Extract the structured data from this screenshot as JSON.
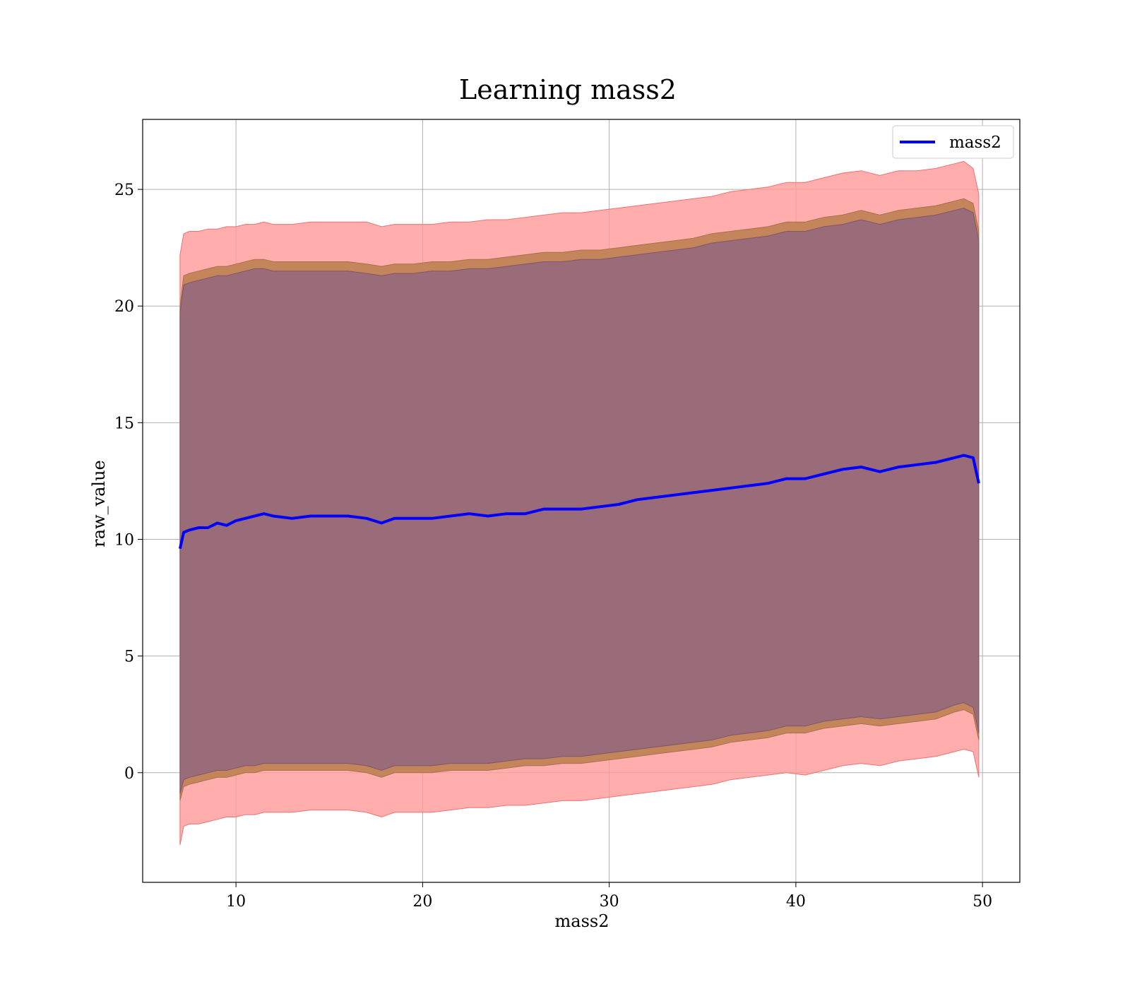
{
  "chart_data": {
    "type": "area",
    "title": "Learning mass2",
    "xlabel": "mass2",
    "ylabel": "raw_value",
    "xlim": [
      5,
      52
    ],
    "ylim": [
      -4.7,
      28
    ],
    "xticks": [
      10,
      20,
      30,
      40,
      50
    ],
    "yticks": [
      0,
      5,
      10,
      15,
      20,
      25
    ],
    "grid": true,
    "legend_position": "top-right",
    "line_color": "#0000ff",
    "band_colors": {
      "outer": "#ff9999",
      "middle": "#c4855a",
      "inner": "#9a6b78"
    },
    "series": [
      {
        "name": "mass2",
        "x": [
          7.0,
          7.2,
          7.5,
          8.0,
          8.5,
          9.0,
          9.5,
          10.0,
          10.5,
          11.0,
          11.5,
          12.0,
          13.0,
          14.0,
          15.0,
          16.0,
          17.0,
          17.8,
          18.5,
          19.5,
          20.5,
          21.5,
          22.5,
          23.5,
          24.5,
          25.5,
          26.5,
          27.5,
          28.5,
          29.5,
          30.5,
          31.5,
          32.5,
          33.5,
          34.5,
          35.5,
          36.5,
          37.5,
          38.5,
          39.5,
          40.5,
          41.5,
          42.5,
          43.5,
          44.5,
          45.5,
          46.5,
          47.5,
          48.5,
          49.0,
          49.5,
          49.8
        ],
        "y": [
          9.6,
          10.3,
          10.4,
          10.5,
          10.5,
          10.7,
          10.6,
          10.8,
          10.9,
          11.0,
          11.1,
          11.0,
          10.9,
          11.0,
          11.0,
          11.0,
          10.9,
          10.7,
          10.9,
          10.9,
          10.9,
          11.0,
          11.1,
          11.0,
          11.1,
          11.1,
          11.3,
          11.3,
          11.3,
          11.4,
          11.5,
          11.7,
          11.8,
          11.9,
          12.0,
          12.1,
          12.2,
          12.3,
          12.4,
          12.6,
          12.6,
          12.8,
          13.0,
          13.1,
          12.9,
          13.1,
          13.2,
          13.3,
          13.5,
          13.6,
          13.5,
          12.4
        ],
        "outer_upper": [
          22.2,
          23.1,
          23.2,
          23.2,
          23.3,
          23.3,
          23.4,
          23.4,
          23.5,
          23.5,
          23.6,
          23.5,
          23.5,
          23.6,
          23.6,
          23.6,
          23.6,
          23.4,
          23.5,
          23.5,
          23.5,
          23.6,
          23.6,
          23.7,
          23.7,
          23.8,
          23.9,
          24.0,
          24.0,
          24.1,
          24.2,
          24.3,
          24.4,
          24.5,
          24.6,
          24.7,
          24.9,
          25.0,
          25.1,
          25.3,
          25.3,
          25.5,
          25.7,
          25.8,
          25.6,
          25.8,
          25.8,
          25.9,
          26.1,
          26.2,
          25.9,
          24.8
        ],
        "outer_lower": [
          -3.1,
          -2.3,
          -2.2,
          -2.2,
          -2.1,
          -2.0,
          -1.9,
          -1.9,
          -1.8,
          -1.8,
          -1.7,
          -1.7,
          -1.7,
          -1.6,
          -1.6,
          -1.6,
          -1.7,
          -1.9,
          -1.7,
          -1.7,
          -1.7,
          -1.6,
          -1.5,
          -1.5,
          -1.4,
          -1.4,
          -1.3,
          -1.2,
          -1.2,
          -1.1,
          -1.0,
          -0.9,
          -0.8,
          -0.7,
          -0.6,
          -0.5,
          -0.3,
          -0.2,
          -0.1,
          0.0,
          -0.1,
          0.1,
          0.3,
          0.4,
          0.3,
          0.5,
          0.6,
          0.7,
          0.9,
          1.0,
          0.9,
          -0.2
        ],
        "middle_upper": [
          20.0,
          21.3,
          21.4,
          21.5,
          21.6,
          21.7,
          21.7,
          21.8,
          21.9,
          22.0,
          22.0,
          21.9,
          21.9,
          21.9,
          21.9,
          21.9,
          21.8,
          21.7,
          21.8,
          21.8,
          21.9,
          21.9,
          22.0,
          22.0,
          22.1,
          22.2,
          22.3,
          22.3,
          22.4,
          22.4,
          22.5,
          22.6,
          22.7,
          22.8,
          22.9,
          23.1,
          23.2,
          23.3,
          23.4,
          23.6,
          23.6,
          23.8,
          23.9,
          24.1,
          23.9,
          24.1,
          24.2,
          24.3,
          24.5,
          24.6,
          24.4,
          23.2
        ],
        "middle_lower": [
          -1.2,
          -0.6,
          -0.5,
          -0.4,
          -0.3,
          -0.2,
          -0.2,
          -0.1,
          0.0,
          0.0,
          0.1,
          0.1,
          0.1,
          0.1,
          0.1,
          0.1,
          0.0,
          -0.2,
          0.0,
          0.0,
          0.0,
          0.1,
          0.1,
          0.1,
          0.2,
          0.3,
          0.3,
          0.4,
          0.4,
          0.5,
          0.6,
          0.7,
          0.8,
          0.9,
          1.0,
          1.1,
          1.3,
          1.4,
          1.5,
          1.7,
          1.7,
          1.9,
          2.0,
          2.1,
          2.0,
          2.1,
          2.2,
          2.3,
          2.6,
          2.7,
          2.5,
          1.4
        ],
        "inner_upper": [
          19.7,
          20.9,
          21.0,
          21.1,
          21.2,
          21.3,
          21.3,
          21.4,
          21.5,
          21.6,
          21.6,
          21.5,
          21.5,
          21.5,
          21.5,
          21.5,
          21.4,
          21.3,
          21.4,
          21.4,
          21.5,
          21.5,
          21.6,
          21.6,
          21.7,
          21.8,
          21.9,
          21.9,
          22.0,
          22.0,
          22.1,
          22.2,
          22.3,
          22.4,
          22.5,
          22.7,
          22.8,
          22.9,
          23.0,
          23.2,
          23.2,
          23.4,
          23.5,
          23.7,
          23.5,
          23.7,
          23.8,
          23.9,
          24.1,
          24.2,
          24.0,
          22.8
        ],
        "inner_lower": [
          -0.9,
          -0.3,
          -0.2,
          -0.1,
          0.0,
          0.1,
          0.1,
          0.2,
          0.3,
          0.3,
          0.4,
          0.4,
          0.4,
          0.4,
          0.4,
          0.4,
          0.3,
          0.1,
          0.3,
          0.3,
          0.3,
          0.4,
          0.4,
          0.4,
          0.5,
          0.6,
          0.6,
          0.7,
          0.7,
          0.8,
          0.9,
          1.0,
          1.1,
          1.2,
          1.3,
          1.4,
          1.6,
          1.7,
          1.8,
          2.0,
          2.0,
          2.2,
          2.3,
          2.4,
          2.3,
          2.4,
          2.5,
          2.6,
          2.9,
          3.0,
          2.8,
          1.7
        ]
      }
    ]
  }
}
